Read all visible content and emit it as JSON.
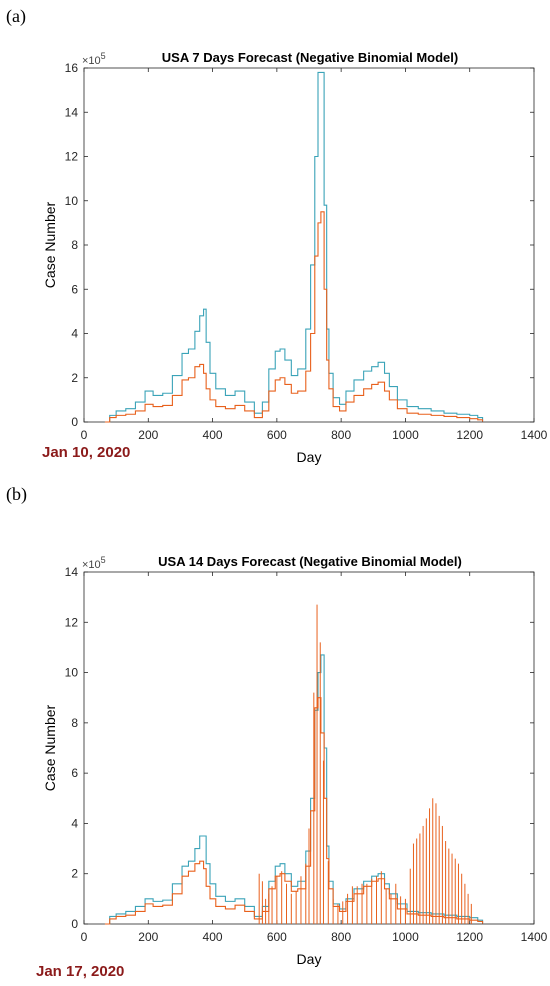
{
  "chart_data": [
    {
      "type": "line",
      "panel_label": "(a)",
      "title": "USA 7 Days Forecast (Negative Binomial Model)",
      "xlabel": "Day",
      "ylabel": "Case Number",
      "y_exponent_label": "×10",
      "y_exponent_power": "5",
      "xlim": [
        0,
        1400
      ],
      "ylim": [
        0,
        16
      ],
      "x_ticks": [
        0,
        200,
        400,
        600,
        800,
        1000,
        1200,
        1400
      ],
      "y_ticks": [
        0,
        2,
        4,
        6,
        8,
        10,
        12,
        14,
        16
      ],
      "date_note": "Jan 10, 2020",
      "grid": false,
      "series": [
        {
          "color": "#3aa3b8",
          "x": [
            65,
            80,
            100,
            130,
            160,
            190,
            215,
            245,
            275,
            305,
            325,
            345,
            360,
            372,
            380,
            392,
            410,
            440,
            470,
            500,
            530,
            555,
            575,
            595,
            610,
            625,
            645,
            665,
            690,
            705,
            718,
            728,
            737,
            747,
            755,
            762,
            775,
            795,
            815,
            840,
            870,
            895,
            915,
            935,
            950,
            975,
            1005,
            1040,
            1080,
            1120,
            1160,
            1200,
            1225,
            1240
          ],
          "y": [
            0,
            0.3,
            0.5,
            0.6,
            0.9,
            1.4,
            1.2,
            1.3,
            2.1,
            3.1,
            3.3,
            4.1,
            4.8,
            5.1,
            3.6,
            2.2,
            1.5,
            1.2,
            1.4,
            0.9,
            0.4,
            0.9,
            2.4,
            3.2,
            3.3,
            2.8,
            2.1,
            2.4,
            4.2,
            7.1,
            12.0,
            15.8,
            15.8,
            9.8,
            4.2,
            2.2,
            1.1,
            0.8,
            1.4,
            1.9,
            2.3,
            2.5,
            2.7,
            2.2,
            1.6,
            1.0,
            0.7,
            0.6,
            0.5,
            0.4,
            0.35,
            0.3,
            0.2,
            0.05
          ]
        },
        {
          "color": "#e8601c",
          "x": [
            65,
            80,
            100,
            130,
            160,
            190,
            215,
            245,
            275,
            305,
            325,
            345,
            360,
            372,
            380,
            392,
            410,
            440,
            470,
            500,
            530,
            555,
            575,
            595,
            610,
            625,
            645,
            665,
            690,
            705,
            718,
            728,
            737,
            747,
            755,
            762,
            775,
            795,
            815,
            840,
            870,
            895,
            915,
            935,
            950,
            975,
            1005,
            1040,
            1080,
            1120,
            1160,
            1200,
            1225,
            1240
          ],
          "y": [
            0,
            0.2,
            0.3,
            0.35,
            0.5,
            0.8,
            0.7,
            0.75,
            1.2,
            1.9,
            2.0,
            2.5,
            2.6,
            2.2,
            1.5,
            1.0,
            0.7,
            0.6,
            0.75,
            0.5,
            0.2,
            0.5,
            1.4,
            1.9,
            2.0,
            1.7,
            1.3,
            1.4,
            2.3,
            4.0,
            7.5,
            9.0,
            9.5,
            6.0,
            2.8,
            1.5,
            0.7,
            0.5,
            0.9,
            1.2,
            1.5,
            1.7,
            1.8,
            1.4,
            1.0,
            0.6,
            0.4,
            0.35,
            0.3,
            0.25,
            0.2,
            0.15,
            0.1,
            0.02
          ]
        }
      ]
    },
    {
      "type": "line",
      "panel_label": "(b)",
      "title": "USA 14 Days Forecast (Negative Binomial Model)",
      "xlabel": "Day",
      "ylabel": "Case Number",
      "y_exponent_label": "×10",
      "y_exponent_power": "5",
      "xlim": [
        0,
        1400
      ],
      "ylim": [
        0,
        14
      ],
      "x_ticks": [
        0,
        200,
        400,
        600,
        800,
        1000,
        1200,
        1400
      ],
      "y_ticks": [
        0,
        2,
        4,
        6,
        8,
        10,
        12,
        14
      ],
      "date_note": "Jan 17, 2020",
      "grid": false,
      "series": [
        {
          "color": "#3aa3b8",
          "x": [
            65,
            80,
            100,
            130,
            160,
            190,
            215,
            245,
            275,
            305,
            325,
            345,
            360,
            372,
            380,
            392,
            410,
            440,
            470,
            500,
            530,
            555,
            575,
            595,
            610,
            625,
            645,
            665,
            690,
            705,
            718,
            728,
            737,
            747,
            755,
            762,
            775,
            795,
            815,
            840,
            870,
            895,
            915,
            935,
            950,
            975,
            1005,
            1040,
            1080,
            1120,
            1160,
            1200,
            1225,
            1240
          ],
          "y": [
            0,
            0.3,
            0.4,
            0.5,
            0.7,
            1.0,
            0.9,
            0.95,
            1.6,
            2.3,
            2.5,
            3.0,
            3.5,
            3.5,
            2.4,
            1.6,
            1.1,
            0.9,
            1.0,
            0.7,
            0.3,
            0.7,
            1.7,
            2.3,
            2.4,
            2.0,
            1.5,
            1.7,
            2.9,
            5.0,
            8.5,
            10.0,
            10.7,
            7.0,
            3.1,
            1.7,
            0.8,
            0.6,
            1.0,
            1.4,
            1.7,
            1.9,
            2.0,
            1.6,
            1.2,
            0.8,
            0.5,
            0.45,
            0.4,
            0.35,
            0.3,
            0.25,
            0.15,
            0.03
          ]
        },
        {
          "color": "#e8601c",
          "x": [
            65,
            80,
            100,
            130,
            160,
            190,
            215,
            245,
            275,
            305,
            325,
            345,
            360,
            372,
            380,
            392,
            410,
            440,
            470,
            500,
            530,
            555,
            575,
            595,
            610,
            625,
            645,
            665,
            690,
            705,
            718,
            728,
            737,
            747,
            755,
            762,
            775,
            795,
            815,
            840,
            870,
            895,
            915,
            935,
            950,
            975,
            1005,
            1040,
            1080,
            1120,
            1160,
            1200,
            1225,
            1240
          ],
          "y": [
            0,
            0.2,
            0.3,
            0.35,
            0.5,
            0.8,
            0.7,
            0.75,
            1.2,
            1.9,
            2.1,
            2.4,
            2.5,
            2.2,
            1.5,
            1.0,
            0.7,
            0.6,
            0.75,
            0.5,
            0.2,
            0.5,
            1.4,
            1.9,
            2.0,
            1.7,
            1.3,
            1.4,
            2.3,
            4.5,
            8.6,
            9.0,
            7.6,
            5.0,
            2.6,
            1.4,
            0.7,
            0.5,
            0.9,
            1.2,
            1.5,
            1.7,
            1.8,
            1.4,
            1.0,
            0.6,
            0.4,
            0.35,
            0.3,
            0.25,
            0.2,
            0.15,
            0.1,
            0.02
          ]
        }
      ],
      "spikes": {
        "color": "#e8601c",
        "x": [
          545,
          555,
          565,
          575,
          585,
          600,
          615,
          630,
          645,
          660,
          675,
          690,
          700,
          715,
          725,
          735,
          745,
          760,
          775,
          790,
          805,
          820,
          835,
          850,
          865,
          880,
          895,
          910,
          925,
          940,
          955,
          970,
          985,
          1000,
          1015,
          1025,
          1035,
          1045,
          1055,
          1065,
          1075,
          1085,
          1095,
          1105,
          1115,
          1125,
          1135,
          1145,
          1155,
          1165,
          1175,
          1185,
          1195,
          1205
        ],
        "y": [
          2.0,
          1.7,
          1.0,
          1.2,
          1.5,
          1.9,
          2.1,
          1.6,
          1.2,
          1.3,
          1.9,
          2.4,
          3.8,
          9.2,
          12.7,
          11.2,
          6.5,
          2.5,
          1.0,
          0.8,
          0.9,
          1.2,
          1.5,
          1.5,
          1.6,
          1.6,
          1.8,
          1.9,
          2.1,
          1.4,
          1.2,
          1.6,
          1.1,
          1.0,
          2.2,
          3.2,
          3.4,
          3.6,
          3.9,
          4.2,
          4.6,
          5.0,
          4.8,
          4.3,
          3.9,
          3.3,
          3.0,
          2.8,
          2.6,
          2.4,
          2.0,
          1.6,
          1.2,
          0.8
        ]
      }
    }
  ]
}
